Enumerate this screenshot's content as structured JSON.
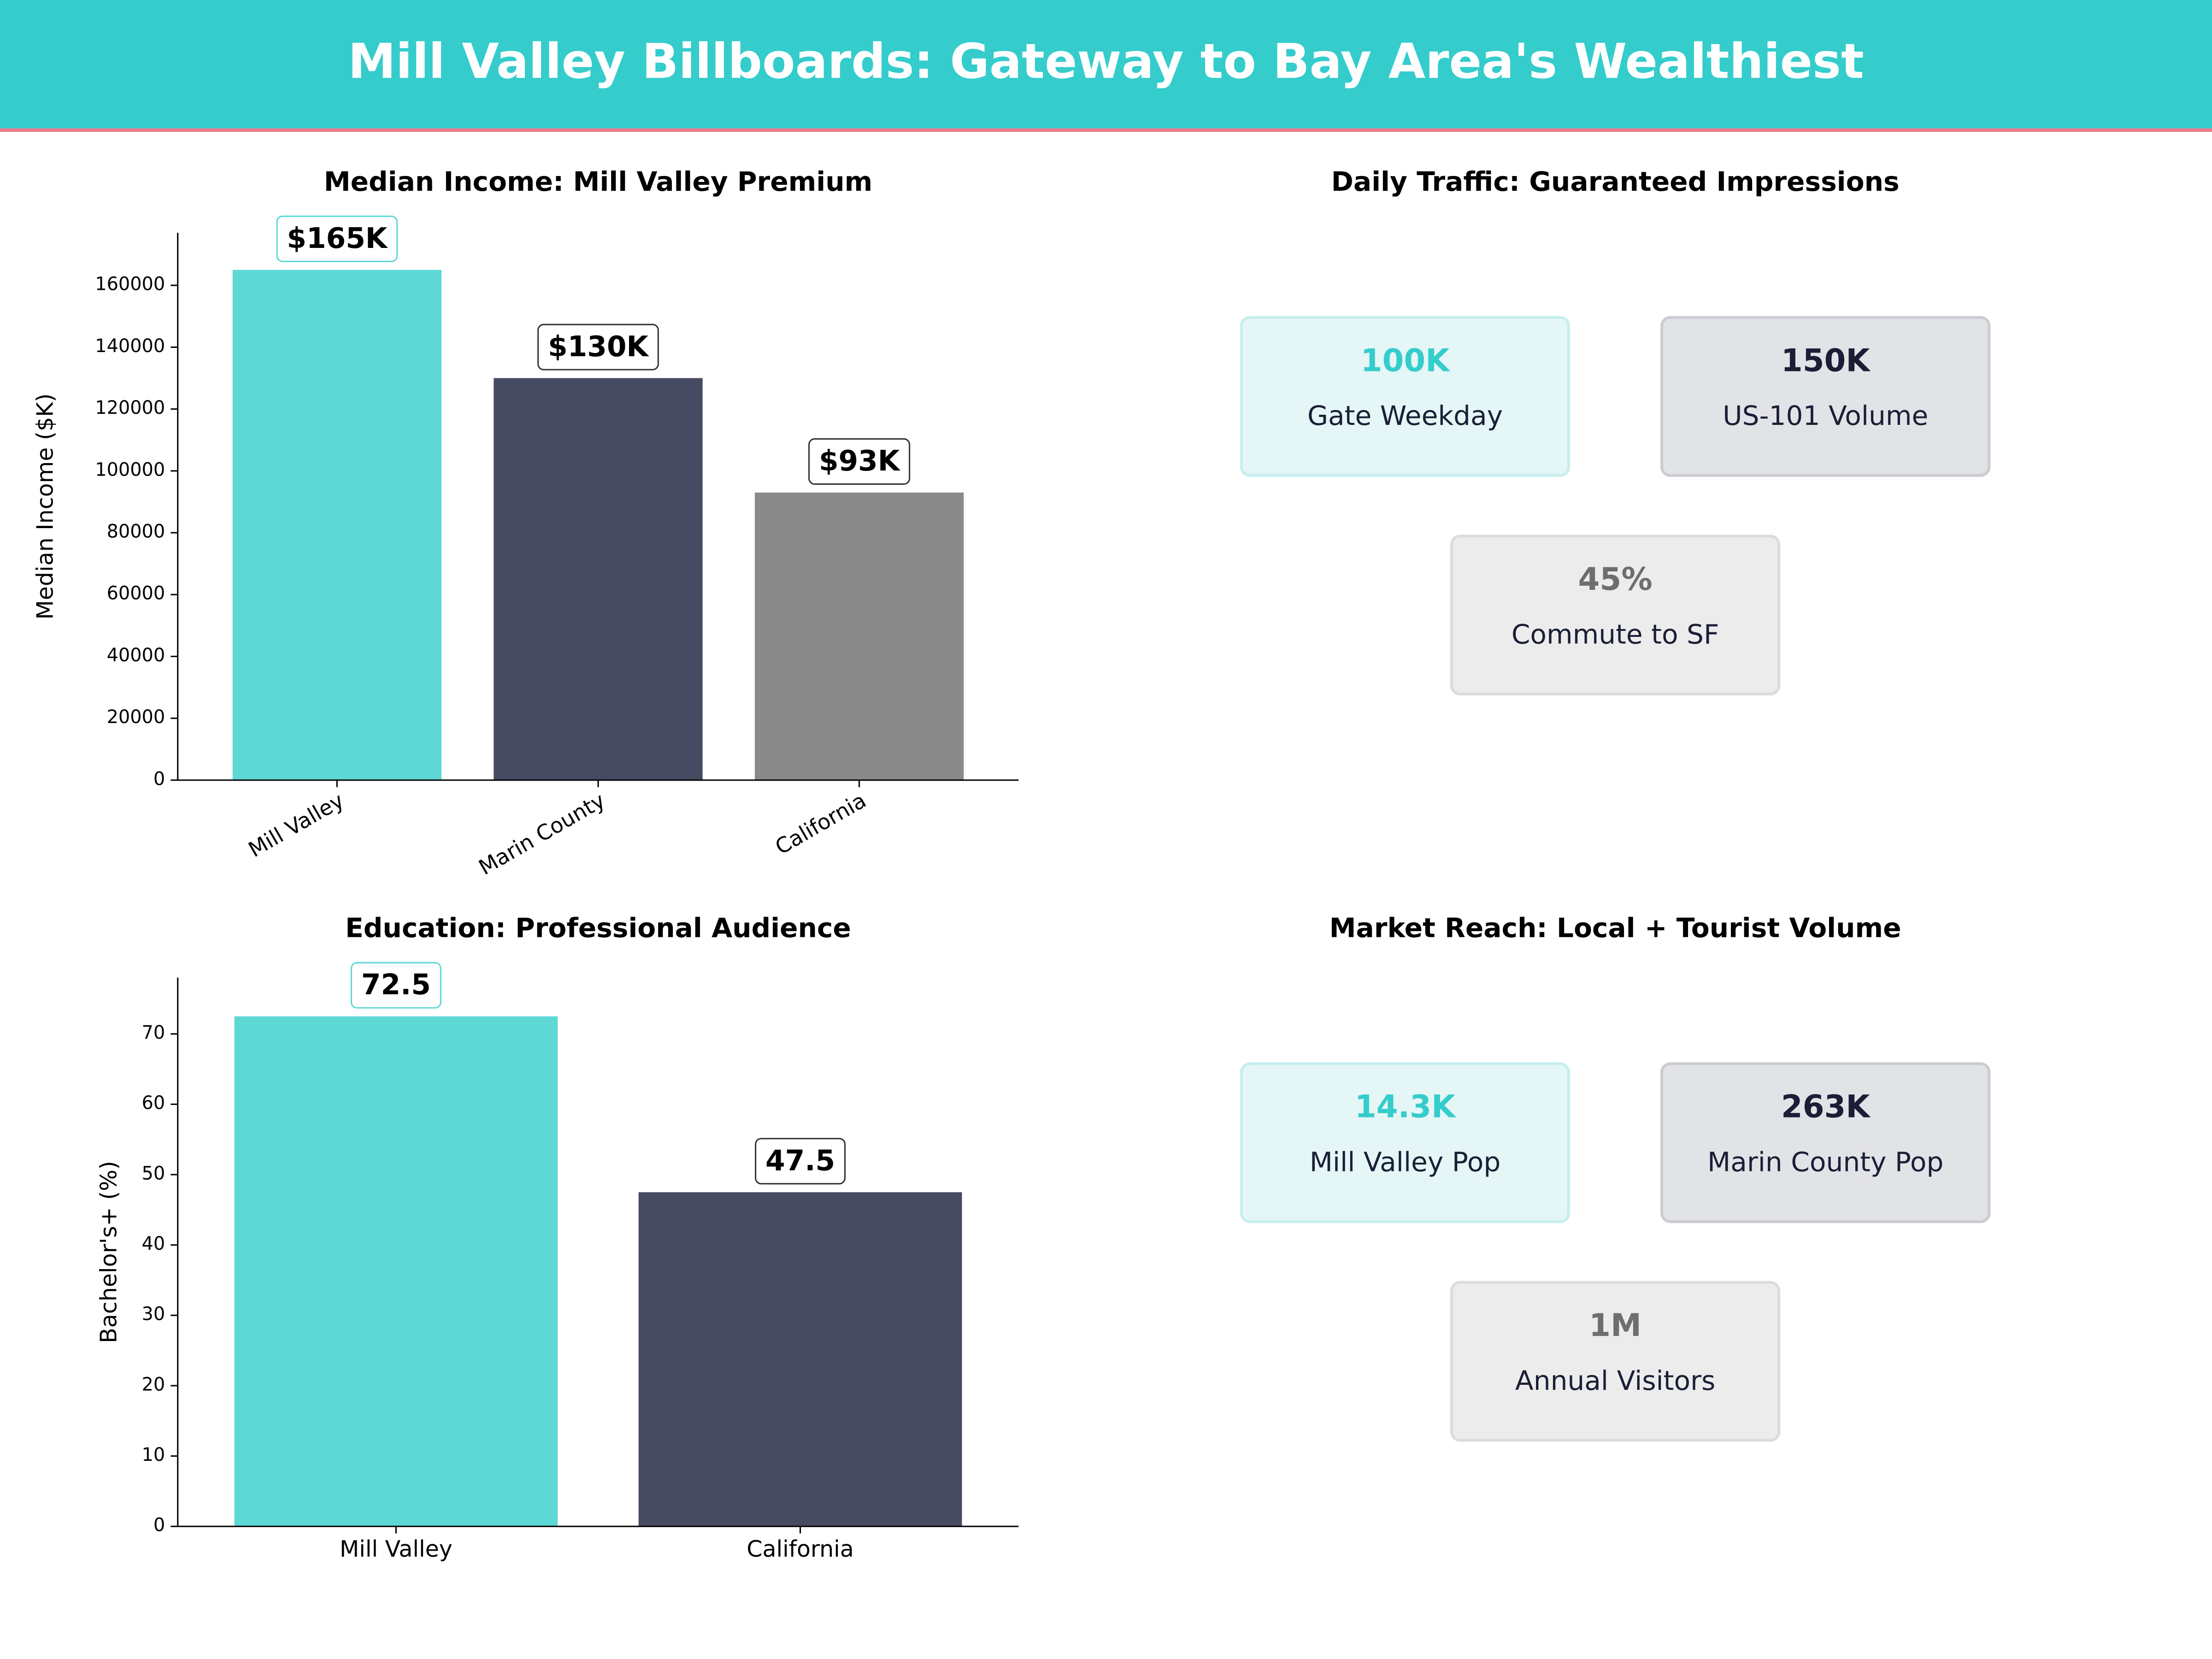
{
  "title": "Mill Valley Billboards: Gateway to Bay Area's Wealthiest",
  "chart_data": [
    {
      "type": "bar",
      "title": "Median Income: Mill Valley Premium",
      "ylabel": "Median Income ($K)",
      "categories": [
        "Mill Valley",
        "Marin County",
        "California"
      ],
      "values": [
        165000,
        130000,
        93000
      ],
      "value_labels": [
        "$165K",
        "$130K",
        "$93K"
      ],
      "colors": [
        "#5ed8d5",
        "#464b62",
        "#8a8a8a"
      ],
      "ylim": [
        0,
        177000
      ],
      "yticks": [
        0,
        20000,
        40000,
        60000,
        80000,
        100000,
        120000,
        140000,
        160000
      ],
      "rotate_labels": true
    },
    {
      "type": "cards",
      "title": "Daily Traffic: Guaranteed Impressions",
      "cards": [
        {
          "value": "100K",
          "label": "Gate Weekday",
          "color": "#35cccc"
        },
        {
          "value": "150K",
          "label": "US-101  Volume",
          "color": "#1a1f36"
        },
        {
          "value": "45%",
          "label": "Commute to SF",
          "color": "#6e6e6e"
        }
      ]
    },
    {
      "type": "bar",
      "title": "Education: Professional Audience",
      "ylabel": "Bachelor's+ (%)",
      "categories": [
        "Mill Valley",
        "California"
      ],
      "values": [
        72.5,
        47.5
      ],
      "colors": [
        "#5ed8d5",
        "#464b62"
      ],
      "ylim": [
        0,
        78
      ],
      "yticks": [
        0,
        10,
        20,
        30,
        40,
        50,
        60,
        70
      ],
      "rotate_labels": false
    },
    {
      "type": "cards",
      "title": "Market Reach: Local + Tourist Volume",
      "cards": [
        {
          "value": "14.3K",
          "label": "Mill Valley Pop",
          "color": "#35cccc"
        },
        {
          "value": "263K",
          "label": "Marin County Pop",
          "color": "#1a1f36"
        },
        {
          "value": "1M",
          "label": "Annual Visitors",
          "color": "#6e6e6e"
        }
      ]
    }
  ]
}
